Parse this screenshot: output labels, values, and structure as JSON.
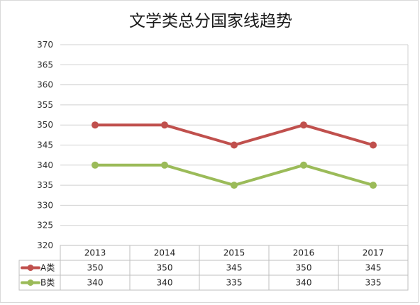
{
  "chart_data": {
    "type": "line",
    "title": "文学类总分国家线趋势",
    "categories": [
      "2013",
      "2014",
      "2015",
      "2016",
      "2017"
    ],
    "ylim": [
      320,
      370
    ],
    "yticks": [
      "370",
      "365",
      "360",
      "355",
      "350",
      "345",
      "340",
      "335",
      "330",
      "325",
      "320"
    ],
    "grid": true,
    "legend": "data-table-left",
    "series": [
      {
        "name": "A类",
        "values": [
          350,
          350,
          345,
          350,
          345
        ],
        "color": "#c0504d"
      },
      {
        "name": "B类",
        "values": [
          340,
          340,
          335,
          340,
          335
        ],
        "color": "#9bbb59"
      }
    ],
    "table_rows": [
      [
        "350",
        "350",
        "345",
        "350",
        "345"
      ],
      [
        "340",
        "340",
        "335",
        "340",
        "335"
      ]
    ]
  }
}
